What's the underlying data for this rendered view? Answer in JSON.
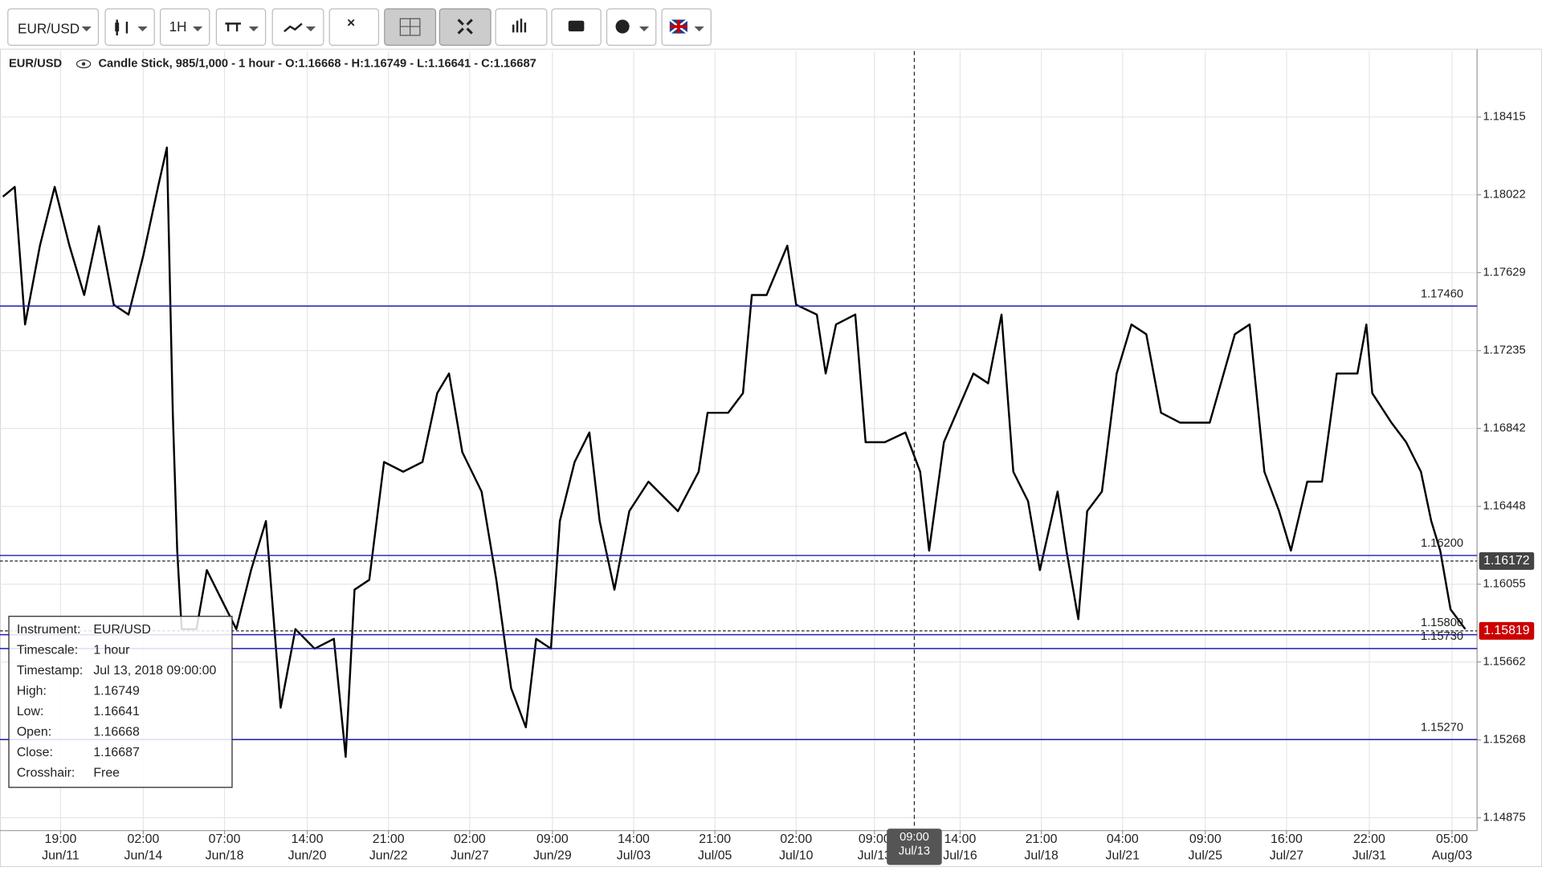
{
  "toolbar": {
    "symbol": "EUR/USD",
    "timeframe": "1H"
  },
  "info": {
    "symbol": "EUR/USD",
    "text": "Candle Stick, 985/1,000 - 1 hour - O:1.16668 - H:1.16749 - L:1.16641 - C:1.16687"
  },
  "tooltip": {
    "rows": [
      [
        "Instrument:",
        "EUR/USD"
      ],
      [
        "Timescale:",
        "1 hour"
      ],
      [
        "Timestamp:",
        "Jul 13, 2018 09:00:00"
      ],
      [
        "High:",
        "1.16749"
      ],
      [
        "Low:",
        "1.16641"
      ],
      [
        "Open:",
        "1.16668"
      ],
      [
        "Close:",
        "1.16687"
      ],
      [
        "Crosshair:",
        "Free"
      ]
    ]
  },
  "chart_data": {
    "type": "line",
    "x": [
      2,
      10,
      17,
      27,
      37,
      47,
      57,
      67,
      77,
      87,
      97,
      107,
      113,
      117,
      120,
      123,
      133,
      140,
      150,
      160,
      170,
      180,
      190,
      200,
      213,
      226,
      234,
      240,
      250,
      260,
      273,
      286,
      296,
      304,
      313,
      326,
      336,
      346,
      356,
      363,
      373,
      379,
      389,
      399,
      406,
      416,
      426,
      439,
      459,
      473,
      479,
      493,
      503,
      509,
      519,
      533,
      539,
      553,
      559,
      566,
      579,
      586,
      599,
      613,
      623,
      629,
      639,
      659,
      669,
      678,
      686,
      696,
      704,
      716,
      722,
      730,
      736,
      746,
      756,
      766,
      776,
      786,
      799,
      819,
      836,
      846,
      856,
      866,
      874,
      885,
      895,
      905,
      919,
      925,
      929,
      942,
      952,
      962,
      969,
      975,
      982,
      992
    ],
    "values": [
      1.18013,
      1.18062,
      1.17367,
      1.17765,
      1.18062,
      1.17765,
      1.17516,
      1.17864,
      1.17467,
      1.17417,
      1.17715,
      1.18062,
      1.18261,
      1.16921,
      1.16225,
      1.15828,
      1.15828,
      1.16126,
      1.15977,
      1.15828,
      1.16126,
      1.16374,
      1.15431,
      1.15828,
      1.15729,
      1.15779,
      1.15183,
      1.16027,
      1.16077,
      1.16672,
      1.16623,
      1.16672,
      1.1702,
      1.17119,
      1.16722,
      1.16523,
      1.16077,
      1.1553,
      1.15332,
      1.15779,
      1.15729,
      1.16374,
      1.16672,
      1.16821,
      1.16374,
      1.16027,
      1.16424,
      1.16573,
      1.16424,
      1.16623,
      1.16921,
      1.16921,
      1.1702,
      1.17516,
      1.17516,
      1.17765,
      1.17467,
      1.17417,
      1.17119,
      1.17367,
      1.17417,
      1.16772,
      1.16772,
      1.16821,
      1.16623,
      1.16225,
      1.16772,
      1.17119,
      1.1707,
      1.17417,
      1.16623,
      1.16474,
      1.16126,
      1.16523,
      1.16225,
      1.15878,
      1.16424,
      1.16523,
      1.17119,
      1.17367,
      1.17318,
      1.16921,
      1.16871,
      1.16871,
      1.17318,
      1.17367,
      1.16623,
      1.16424,
      1.16225,
      1.16573,
      1.16573,
      1.17119,
      1.17119,
      1.17367,
      1.1702,
      1.16871,
      1.16772,
      1.16623,
      1.16374,
      1.16225,
      1.15928,
      1.15828
    ],
    "color": "#000000",
    "xlim": [
      0,
      1000
    ],
    "ylim": [
      1.1481,
      1.18748
    ],
    "yticks": [
      1.18415,
      1.18022,
      1.17629,
      1.17235,
      1.16842,
      1.16448,
      1.16055,
      1.15662,
      1.15268,
      1.14875
    ],
    "xticks": [
      {
        "value": 41,
        "label": "19:00",
        "date": "Jun/11"
      },
      {
        "value": 97,
        "label": "02:00",
        "date": "Jun/14"
      },
      {
        "value": 152,
        "label": "07:00",
        "date": "Jun/18"
      },
      {
        "value": 208,
        "label": "14:00",
        "date": "Jun/20"
      },
      {
        "value": 263,
        "label": "21:00",
        "date": "Jun/22"
      },
      {
        "value": 318,
        "label": "02:00",
        "date": "Jun/27"
      },
      {
        "value": 374,
        "label": "09:00",
        "date": "Jun/29"
      },
      {
        "value": 429,
        "label": "14:00",
        "date": "Jul/03"
      },
      {
        "value": 484,
        "label": "21:00",
        "date": "Jul/05"
      },
      {
        "value": 539,
        "label": "02:00",
        "date": "Jul/10"
      },
      {
        "value": 592,
        "label": "09:00",
        "date": "Jul/13"
      },
      {
        "value": 650,
        "label": "14:00",
        "date": "Jul/16"
      },
      {
        "value": 705,
        "label": "21:00",
        "date": "Jul/18"
      },
      {
        "value": 760,
        "label": "04:00",
        "date": "Jul/21"
      },
      {
        "value": 816,
        "label": "09:00",
        "date": "Jul/25"
      },
      {
        "value": 871,
        "label": "16:00",
        "date": "Jul/27"
      },
      {
        "value": 927,
        "label": "22:00",
        "date": "Jul/31"
      },
      {
        "value": 983,
        "label": "05:00",
        "date": "Aug/03"
      }
    ],
    "grid": true,
    "levels": [
      {
        "value": 1.1746,
        "label": "1.17460"
      },
      {
        "value": 1.162,
        "label": "1.16200"
      },
      {
        "value": 1.158,
        "label": "1.15800"
      },
      {
        "value": 1.1573,
        "label": "1.15730"
      },
      {
        "value": 1.1527,
        "label": "1.15270"
      }
    ],
    "level_color": "#1f1fb4",
    "price_badges": [
      {
        "value": 1.16172,
        "color": "#444444"
      },
      {
        "value": 1.15819,
        "color": "#cc0000"
      }
    ],
    "crosshair": {
      "x": 619,
      "label": "09:00",
      "date": "Jul/13"
    }
  }
}
